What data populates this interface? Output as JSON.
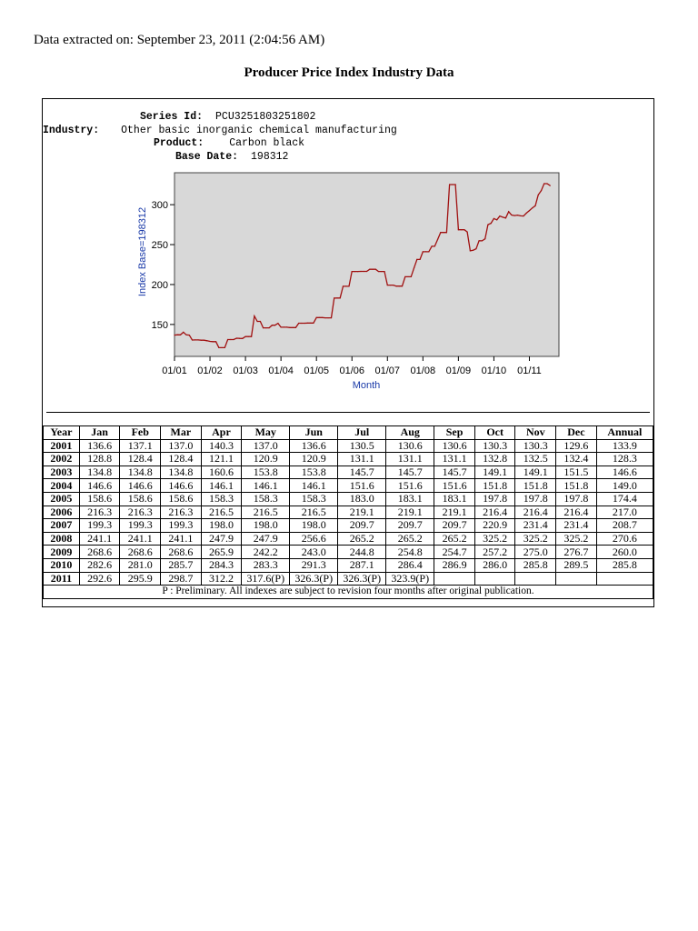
{
  "header": {
    "extracted_label": "Data extracted on: September 23, 2011 (2:04:56 AM)",
    "title": "Producer Price Index Industry Data"
  },
  "series_info": {
    "series_id_label": "Series Id:",
    "series_id": "PCU3251803251802",
    "industry_label": "Industry:",
    "industry": "Other basic inorganic chemical manufacturing",
    "product_label": "Product:",
    "product": "Carbon black",
    "base_date_label": "Base Date:",
    "base_date": "198312"
  },
  "chart_data": {
    "type": "line",
    "xlabel": "Month",
    "ylabel": "Index Base=198312",
    "x_tick_labels": [
      "01/01",
      "01/02",
      "01/03",
      "01/04",
      "01/05",
      "01/06",
      "01/07",
      "01/08",
      "01/09",
      "01/10",
      "01/11"
    ],
    "y_ticks": [
      150,
      200,
      250,
      300
    ],
    "ylim": [
      110,
      340
    ],
    "grid": false,
    "line_color": "#a01010",
    "plot_background": "#d8d8d8",
    "series": [
      {
        "values": [
          136.6,
          137.1,
          137.0,
          140.3,
          137.0,
          136.6,
          130.5,
          130.6,
          130.6,
          130.3,
          130.3,
          129.6,
          128.8,
          128.4,
          128.4,
          121.1,
          120.9,
          120.9,
          131.1,
          131.1,
          131.1,
          132.8,
          132.5,
          132.4,
          134.8,
          134.8,
          134.8,
          160.6,
          153.8,
          153.8,
          145.7,
          145.7,
          145.7,
          149.1,
          149.1,
          151.5,
          146.6,
          146.6,
          146.6,
          146.1,
          146.1,
          146.1,
          151.6,
          151.6,
          151.6,
          151.8,
          151.8,
          151.8,
          158.6,
          158.6,
          158.6,
          158.3,
          158.3,
          158.3,
          183.0,
          183.1,
          183.1,
          197.8,
          197.8,
          197.8,
          216.3,
          216.3,
          216.3,
          216.5,
          216.5,
          216.5,
          219.1,
          219.1,
          219.1,
          216.4,
          216.4,
          216.4,
          199.3,
          199.3,
          199.3,
          198.0,
          198.0,
          198.0,
          209.7,
          209.7,
          209.7,
          220.9,
          231.4,
          231.4,
          241.1,
          241.1,
          241.1,
          247.9,
          247.9,
          256.6,
          265.2,
          265.2,
          265.2,
          325.2,
          325.2,
          325.2,
          268.6,
          268.6,
          268.6,
          265.9,
          242.2,
          243.0,
          244.8,
          254.8,
          254.7,
          257.2,
          275.0,
          276.7,
          282.6,
          281.0,
          285.7,
          284.3,
          283.3,
          291.3,
          287.1,
          286.4,
          286.9,
          286.0,
          285.8,
          289.5,
          292.6,
          295.9,
          298.7,
          312.2,
          317.6,
          326.3,
          326.3,
          323.9
        ]
      }
    ]
  },
  "table": {
    "headers": [
      "Year",
      "Jan",
      "Feb",
      "Mar",
      "Apr",
      "May",
      "Jun",
      "Jul",
      "Aug",
      "Sep",
      "Oct",
      "Nov",
      "Dec",
      "Annual"
    ],
    "rows": [
      [
        "2001",
        "136.6",
        "137.1",
        "137.0",
        "140.3",
        "137.0",
        "136.6",
        "130.5",
        "130.6",
        "130.6",
        "130.3",
        "130.3",
        "129.6",
        "133.9"
      ],
      [
        "2002",
        "128.8",
        "128.4",
        "128.4",
        "121.1",
        "120.9",
        "120.9",
        "131.1",
        "131.1",
        "131.1",
        "132.8",
        "132.5",
        "132.4",
        "128.3"
      ],
      [
        "2003",
        "134.8",
        "134.8",
        "134.8",
        "160.6",
        "153.8",
        "153.8",
        "145.7",
        "145.7",
        "145.7",
        "149.1",
        "149.1",
        "151.5",
        "146.6"
      ],
      [
        "2004",
        "146.6",
        "146.6",
        "146.6",
        "146.1",
        "146.1",
        "146.1",
        "151.6",
        "151.6",
        "151.6",
        "151.8",
        "151.8",
        "151.8",
        "149.0"
      ],
      [
        "2005",
        "158.6",
        "158.6",
        "158.6",
        "158.3",
        "158.3",
        "158.3",
        "183.0",
        "183.1",
        "183.1",
        "197.8",
        "197.8",
        "197.8",
        "174.4"
      ],
      [
        "2006",
        "216.3",
        "216.3",
        "216.3",
        "216.5",
        "216.5",
        "216.5",
        "219.1",
        "219.1",
        "219.1",
        "216.4",
        "216.4",
        "216.4",
        "217.0"
      ],
      [
        "2007",
        "199.3",
        "199.3",
        "199.3",
        "198.0",
        "198.0",
        "198.0",
        "209.7",
        "209.7",
        "209.7",
        "220.9",
        "231.4",
        "231.4",
        "208.7"
      ],
      [
        "2008",
        "241.1",
        "241.1",
        "241.1",
        "247.9",
        "247.9",
        "256.6",
        "265.2",
        "265.2",
        "265.2",
        "325.2",
        "325.2",
        "325.2",
        "270.6"
      ],
      [
        "2009",
        "268.6",
        "268.6",
        "268.6",
        "265.9",
        "242.2",
        "243.0",
        "244.8",
        "254.8",
        "254.7",
        "257.2",
        "275.0",
        "276.7",
        "260.0"
      ],
      [
        "2010",
        "282.6",
        "281.0",
        "285.7",
        "284.3",
        "283.3",
        "291.3",
        "287.1",
        "286.4",
        "286.9",
        "286.0",
        "285.8",
        "289.5",
        "285.8"
      ],
      [
        "2011",
        "292.6",
        "295.9",
        "298.7",
        "312.2",
        "317.6(P)",
        "326.3(P)",
        "326.3(P)",
        "323.9(P)",
        "",
        "",
        "",
        "",
        ""
      ]
    ],
    "footnote": "P : Preliminary. All indexes are subject to revision four months after original publication."
  }
}
